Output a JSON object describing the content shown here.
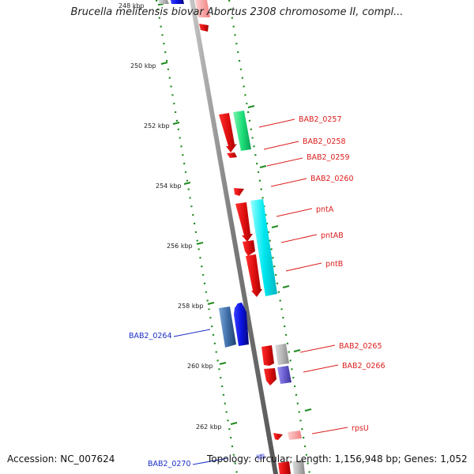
{
  "title": "Brucella melitensis biovar Abortus 2308 chromosome II, compl...",
  "footer": {
    "accession": "Accession: NC_007624",
    "topology": "Topology: circular; Length: 1,156,948 bp; Genes: 1,052"
  },
  "scale": {
    "ticks": [
      "248 kbp",
      "250 kbp",
      "252 kbp",
      "254 kbp",
      "256 kbp",
      "258 kbp",
      "260 kbp",
      "262 kbp"
    ]
  },
  "genes": [
    {
      "name": "BAB2_0257",
      "color": "#dd1c1c"
    },
    {
      "name": "BAB2_0258",
      "color": "#dd1c1c"
    },
    {
      "name": "BAB2_0259",
      "color": "#dd1c1c"
    },
    {
      "name": "BAB2_0260",
      "color": "#dd1c1c"
    },
    {
      "name": "pntA",
      "color": "#dd1c1c"
    },
    {
      "name": "pntAB",
      "color": "#dd1c1c"
    },
    {
      "name": "pntB",
      "color": "#dd1c1c"
    },
    {
      "name": "BAB2_0265",
      "color": "#dd1c1c"
    },
    {
      "name": "BAB2_0266",
      "color": "#dd1c1c"
    },
    {
      "name": "rpsU",
      "color": "#dd1c1c"
    },
    {
      "name": "BAB2_0264",
      "color": "#1a2fc8"
    },
    {
      "name": "BAB2_0270",
      "color": "#1a2fc8"
    }
  ],
  "colors": {
    "forward_cds": "#e11414",
    "reverse_cds": "#0a12e0",
    "rrna_cyan": "#00e8f0",
    "green_feature": "#1ee07a",
    "grey_feature": "#b0b0b0",
    "purple_feature": "#6a5fd0",
    "steelblue_feature": "#3f6fa8",
    "backbone": "#8a8a8a",
    "gc_dots": "#1f8a1f"
  }
}
